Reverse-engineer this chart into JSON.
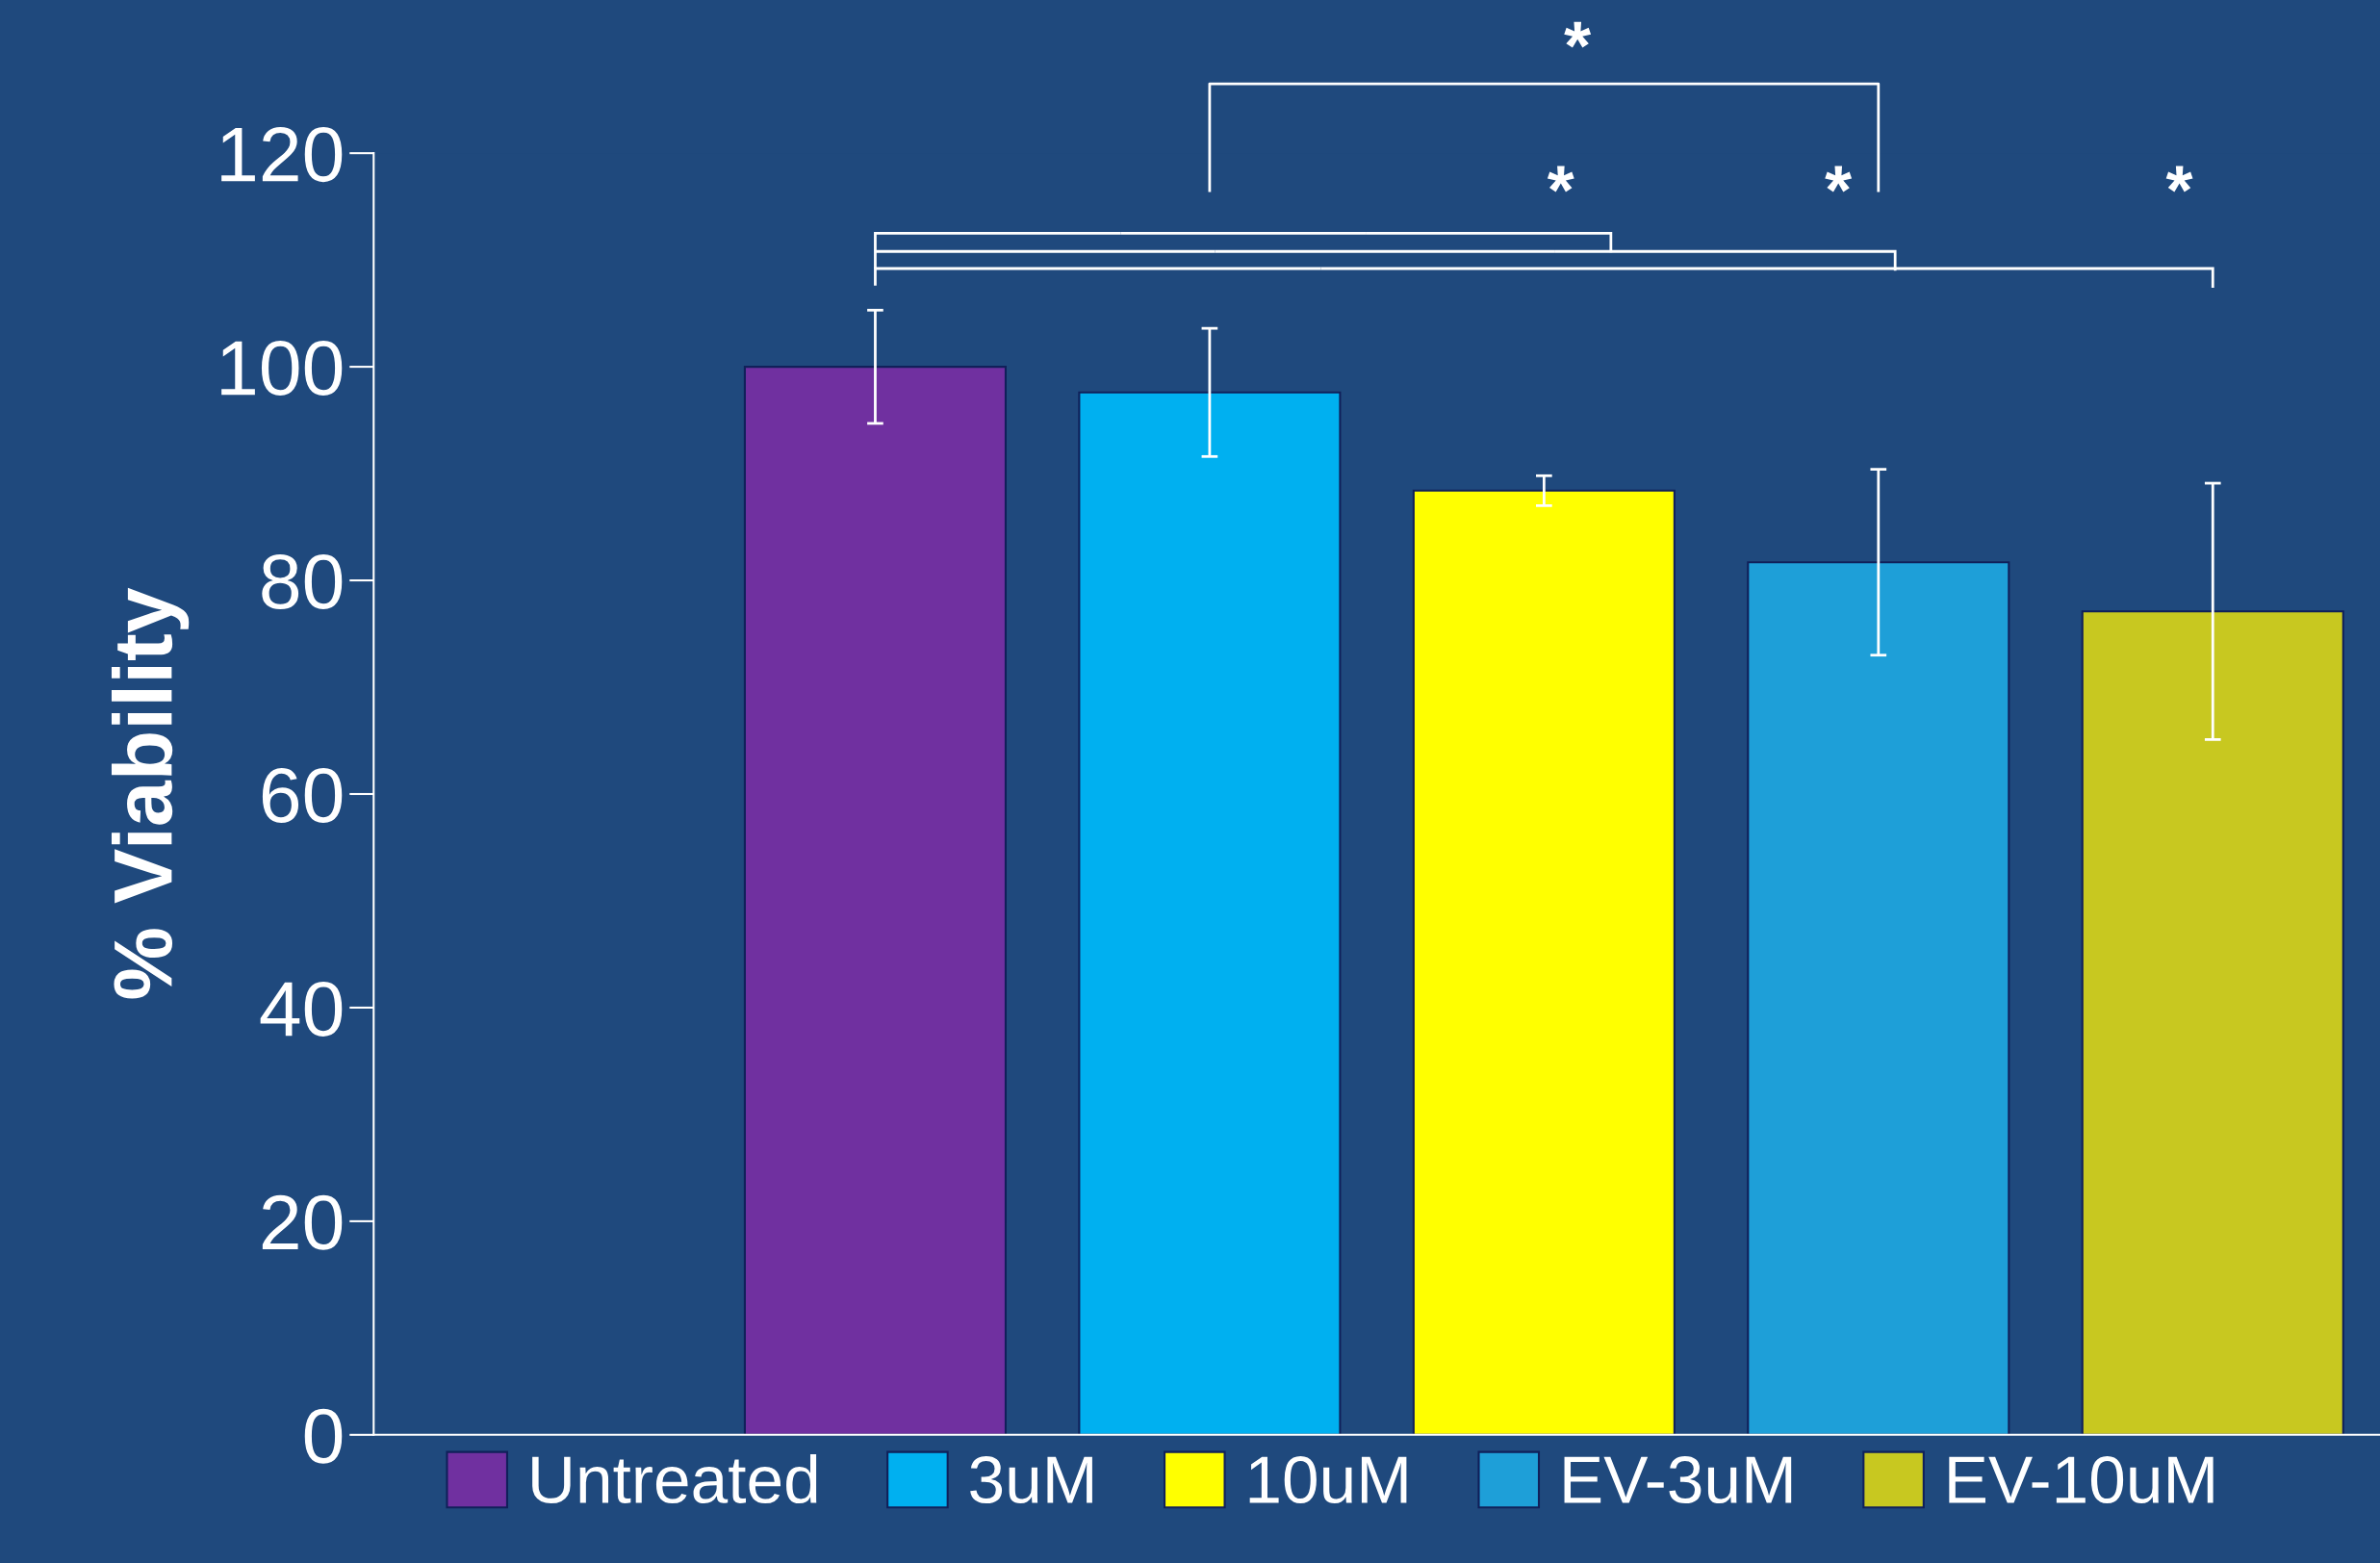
{
  "chart_data": {
    "type": "bar",
    "categories": [
      null,
      null,
      null,
      null,
      null,
      null
    ],
    "series": [
      {
        "name": "Untreated",
        "color": "#7030a0",
        "values": [
          null,
          100,
          null,
          null,
          null,
          null
        ],
        "errors": [
          null,
          5.3,
          null,
          null,
          null,
          null
        ]
      },
      {
        "name": "3uM",
        "color": "#00b0f0",
        "values": [
          null,
          null,
          97.6,
          null,
          null,
          null
        ],
        "errors": [
          null,
          null,
          6,
          null,
          null,
          null
        ]
      },
      {
        "name": "10uM",
        "color": "#ffff00",
        "values": [
          null,
          null,
          null,
          88.4,
          null,
          null
        ],
        "errors": [
          null,
          null,
          null,
          1.4,
          null,
          null
        ]
      },
      {
        "name": "EV-3uM",
        "color": "#1e9fd8",
        "values": [
          null,
          null,
          null,
          null,
          81.7,
          null
        ],
        "errors": [
          null,
          null,
          null,
          null,
          8.7,
          null
        ]
      },
      {
        "name": "EV-10uM",
        "color": "#c8c820",
        "values": [
          null,
          null,
          null,
          null,
          null,
          77.1
        ],
        "errors": [
          null,
          null,
          null,
          null,
          null,
          12
        ]
      }
    ],
    "ylabel": "% Viability",
    "ylim": [
      0,
      120
    ],
    "yticks": [
      0,
      20,
      40,
      60,
      80,
      100,
      120
    ],
    "tick_labels": "y",
    "grid": false,
    "legend": "bottom",
    "annotations": [
      "*",
      "*",
      "*",
      "*"
    ]
  }
}
